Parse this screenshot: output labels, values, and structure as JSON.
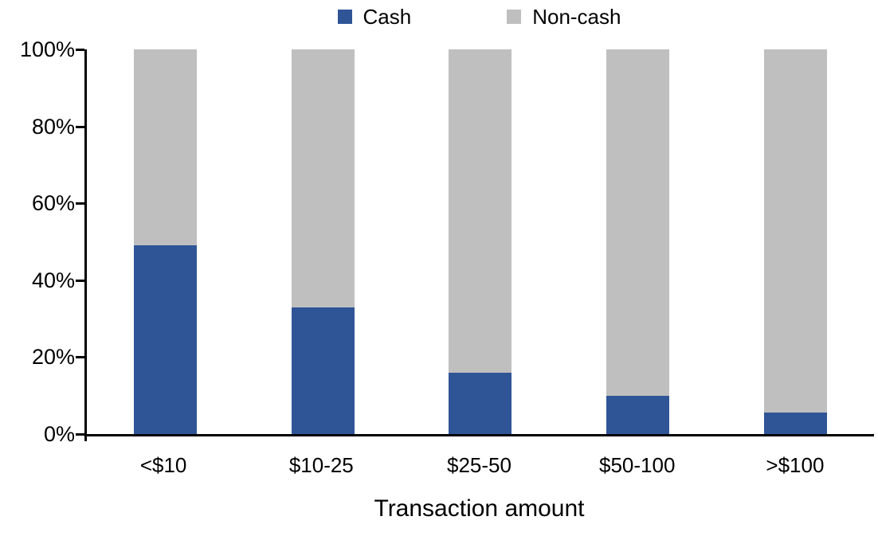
{
  "figure": {
    "background": "#ffffff",
    "axis_color": "#000000",
    "text_color": "#000000"
  },
  "legend": {
    "position": "top-center",
    "items": [
      {
        "label": "Cash",
        "color": "#2F5597",
        "swatch": "square"
      },
      {
        "label": "Non-cash",
        "color": "#BFBFBF",
        "swatch": "square"
      }
    ]
  },
  "chart_data": {
    "type": "bar",
    "subtype": "stacked-100",
    "title": "",
    "xlabel": "Transaction amount",
    "ylabel": "",
    "categories": [
      "<$10",
      "$10-25",
      "$25-50",
      "$50-100",
      ">$100"
    ],
    "series": [
      {
        "name": "Cash",
        "color": "#2F5597",
        "values": [
          49,
          33,
          16,
          10,
          5.5
        ]
      },
      {
        "name": "Non-cash",
        "color": "#BFBFBF",
        "values": [
          51,
          67,
          84,
          90,
          94.5
        ]
      }
    ],
    "ylim": [
      0,
      100
    ],
    "yticks": [
      0,
      20,
      40,
      60,
      80,
      100
    ],
    "ytick_labels": [
      "0%",
      "20%",
      "40%",
      "60%",
      "80%",
      "100%"
    ],
    "grid": false,
    "legend_position": "top-center",
    "bar_gap_ratio": 1.5
  }
}
